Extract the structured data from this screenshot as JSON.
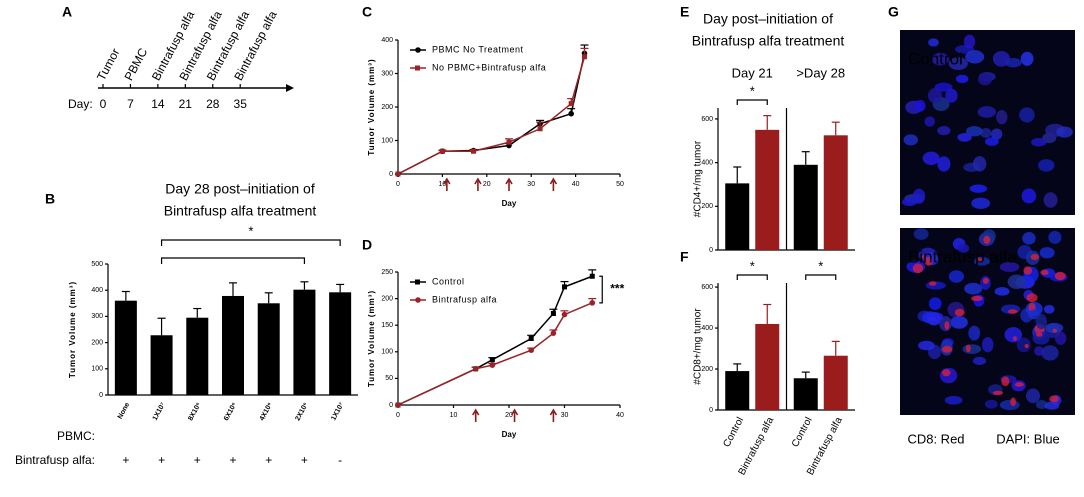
{
  "timeline": {
    "panel": "A",
    "label": "Day:",
    "events": [
      {
        "day": 0,
        "label": "Tumor"
      },
      {
        "day": 7,
        "label": "PBMC"
      },
      {
        "day": 14,
        "label": "Bintrafusp alfa"
      },
      {
        "day": 21,
        "label": "Bintrafusp alfa"
      },
      {
        "day": 28,
        "label": "Bintrafusp alfa"
      },
      {
        "day": 35,
        "label": "Bintrafusp alfa"
      }
    ]
  },
  "chart_data": [
    {
      "type": "bar",
      "panel": "B",
      "title": [
        "Day 28 post–initiation of",
        "Bintrafusp alfa treatment"
      ],
      "ylabel": "Tumor Volume (mm³)",
      "categories_label": "PBMC:",
      "categories": [
        "None",
        "1X10⁷",
        "8X10⁶",
        "6X10⁶",
        "4X10⁶",
        "2X10⁶",
        "1X10⁷"
      ],
      "values": [
        360,
        228,
        295,
        378,
        350,
        402,
        392
      ],
      "errors": [
        35,
        65,
        35,
        50,
        40,
        30,
        30
      ],
      "color": "#000000",
      "treatment": {
        "label": "Bintrafusp alfa:",
        "values": [
          "+",
          "+",
          "+",
          "+",
          "+",
          "+",
          "-"
        ]
      },
      "annotations": [
        "*"
      ],
      "ylim": [
        0,
        500
      ],
      "yticks": [
        0,
        100,
        200,
        300,
        400,
        500
      ]
    },
    {
      "type": "line",
      "panel": "C",
      "xlabel": "Day",
      "ylabel": "Tumor Volume (mm³)",
      "legend": "top-left",
      "xlim": [
        0,
        50
      ],
      "xticks": [
        0,
        10,
        20,
        30,
        40,
        50
      ],
      "ylim": [
        0,
        400
      ],
      "yticks": [
        0,
        100,
        200,
        300,
        400
      ],
      "treatment_days": [
        11,
        18,
        25,
        35
      ],
      "arrow_color": "#8b1a1a",
      "series": [
        {
          "name": "PBMC No Treatment",
          "color": "#000000",
          "marker": "circle",
          "x": [
            0,
            10,
            17,
            25,
            32,
            39,
            42
          ],
          "values": [
            0,
            68,
            70,
            85,
            150,
            180,
            360
          ],
          "errors": [
            0,
            3,
            3,
            6,
            10,
            15,
            25
          ]
        },
        {
          "name": "No PBMC+Bintrafusp alfa",
          "color": "#9b2226",
          "marker": "square",
          "x": [
            0,
            10,
            17,
            25,
            32,
            39,
            42
          ],
          "values": [
            0,
            68,
            68,
            95,
            135,
            210,
            350
          ],
          "errors": [
            0,
            3,
            3,
            10,
            20,
            15,
            25
          ]
        }
      ]
    },
    {
      "type": "line",
      "panel": "D",
      "xlabel": "Day",
      "ylabel": "Tumor Volume (mm³)",
      "legend": "top-left",
      "xlim": [
        0,
        40
      ],
      "xticks": [
        0,
        10,
        20,
        30,
        40
      ],
      "ylim": [
        0,
        250
      ],
      "yticks": [
        0,
        50,
        100,
        150,
        200,
        250
      ],
      "treatment_days": [
        14,
        21,
        28
      ],
      "arrow_color": "#8b1a1a",
      "annotations": [
        "***"
      ],
      "series": [
        {
          "name": "Control",
          "color": "#000000",
          "marker": "square",
          "x": [
            0,
            14,
            17,
            24,
            28,
            30,
            35
          ],
          "values": [
            0,
            68,
            85,
            125,
            172,
            222,
            242
          ],
          "errors": [
            0,
            3,
            4,
            6,
            8,
            10,
            12
          ]
        },
        {
          "name": "Bintrafusp alfa",
          "color": "#9b2226",
          "marker": "circle",
          "x": [
            0,
            14,
            17,
            24,
            28,
            30,
            35
          ],
          "values": [
            0,
            68,
            75,
            103,
            135,
            170,
            192
          ],
          "errors": [
            0,
            3,
            3,
            4,
            6,
            7,
            8
          ]
        }
      ]
    },
    {
      "type": "grouped_bar",
      "panel": "E",
      "title": [
        "Day post–initiation of",
        "Bintrafusp alfa treatment"
      ],
      "ylabel": "#CD4+/mg tumor",
      "categories": [
        "Day 21",
        ">Day 28"
      ],
      "annotations": [
        "*"
      ],
      "ylim": [
        0,
        650
      ],
      "yticks": [
        0,
        200,
        400,
        600
      ],
      "series": [
        {
          "name": "Control",
          "color": "#000000",
          "values": [
            305,
            390
          ],
          "errors": [
            75,
            60
          ]
        },
        {
          "name": "Bintrafusp alfa",
          "color": "#9b1c1c",
          "values": [
            550,
            525
          ],
          "errors": [
            65,
            60
          ]
        }
      ]
    },
    {
      "type": "grouped_bar",
      "panel": "F",
      "ylabel": "#CD8+/mg tumor",
      "categories": [
        null,
        null
      ],
      "annotations": [
        "*",
        "*"
      ],
      "ylim": [
        0,
        620
      ],
      "yticks": [
        0,
        200,
        400,
        600
      ],
      "series": [
        {
          "name": "Control",
          "color": "#000000",
          "values": [
            190,
            155
          ],
          "errors": [
            35,
            30
          ]
        },
        {
          "name": "Bintrafusp alfa",
          "color": "#9b1c1c",
          "values": [
            420,
            265
          ],
          "errors": [
            95,
            70
          ]
        }
      ]
    }
  ],
  "images": {
    "panel": "G",
    "panes": [
      "Control",
      "Bintrafusp alfa"
    ],
    "captions": [
      {
        "text": "CD8: Red",
        "color": "#c00000"
      },
      {
        "text": "DAPI: Blue",
        "color": "#1f3fbf"
      }
    ]
  }
}
